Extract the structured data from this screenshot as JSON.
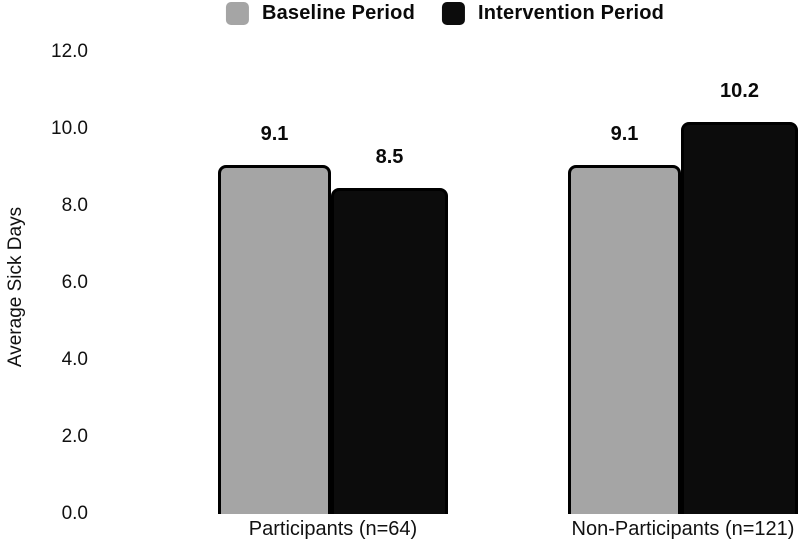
{
  "chart_data": {
    "type": "bar",
    "title": "",
    "ylabel": "Average Sick Days",
    "xlabel": "",
    "ylim": [
      0,
      12
    ],
    "ytick_labels": [
      "0.0",
      "2.0",
      "4.0",
      "6.0",
      "8.0",
      "10.0",
      "12.0"
    ],
    "ytick_values": [
      0,
      2,
      4,
      6,
      8,
      10,
      12
    ],
    "categories": [
      "Participants (n=64)",
      "Non-Participants (n=121)"
    ],
    "series": [
      {
        "name": "Baseline Period",
        "color": "#a5a5a5",
        "values": [
          9.1,
          9.1
        ],
        "value_labels": [
          "9.1",
          "9.1"
        ]
      },
      {
        "name": "Intervention Period",
        "color": "#0c0c0c",
        "values": [
          8.5,
          10.2
        ],
        "value_labels": [
          "8.5",
          "10.2"
        ]
      }
    ],
    "legend_position": "top",
    "grid": false,
    "bar_border_color": "#000000",
    "background": "#ffffff"
  }
}
